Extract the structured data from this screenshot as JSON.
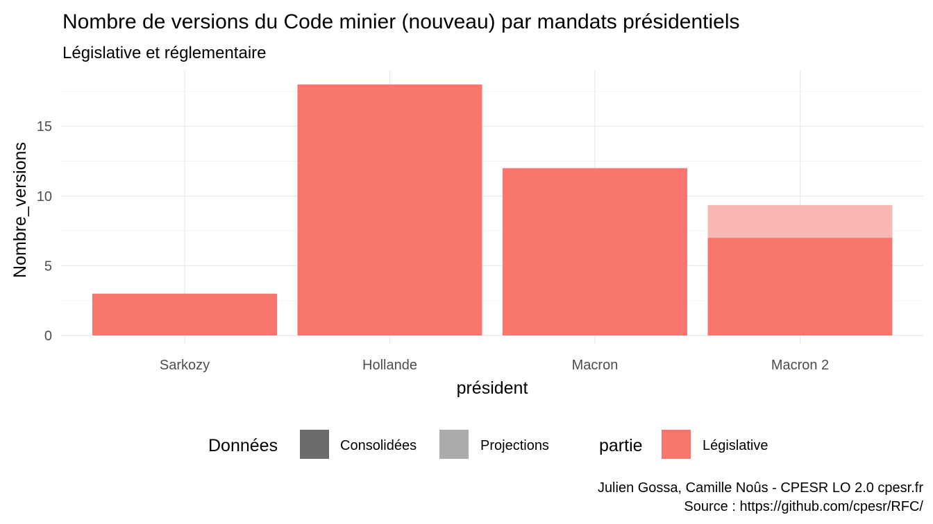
{
  "chart_data": {
    "type": "bar",
    "title": "Nombre de versions du Code minier (nouveau) par mandats présidentiels",
    "subtitle": "Législative et réglementaire",
    "xlabel": "président",
    "ylabel": "Nombre_versions",
    "categories": [
      "Sarkozy",
      "Hollande",
      "Macron",
      "Macron 2"
    ],
    "series": [
      {
        "name": "Consolidées",
        "values": [
          3,
          18,
          12,
          7
        ]
      },
      {
        "name": "Projections",
        "values": [
          0,
          0,
          0,
          9.35
        ]
      }
    ],
    "ylim": [
      0,
      18
    ],
    "yticks": [
      0,
      5,
      10,
      15
    ],
    "grid": true,
    "legend": {
      "placement": "bottom",
      "groups": [
        {
          "title": "Données",
          "items": [
            {
              "label": "Consolidées",
              "color": "#6b6b6b"
            },
            {
              "label": "Projections",
              "color": "#ababab"
            }
          ]
        },
        {
          "title": "partie",
          "items": [
            {
              "label": "Législative",
              "color": "#f8766d"
            }
          ]
        }
      ]
    },
    "colors": {
      "bar": "#f8766d",
      "bar_projection": "#f9b8b3"
    },
    "caption": [
      "Julien Gossa, Camille Noûs - CPESR LO 2.0 cpesr.fr ",
      "Source : https://github.com/cpesr/RFC/"
    ]
  }
}
